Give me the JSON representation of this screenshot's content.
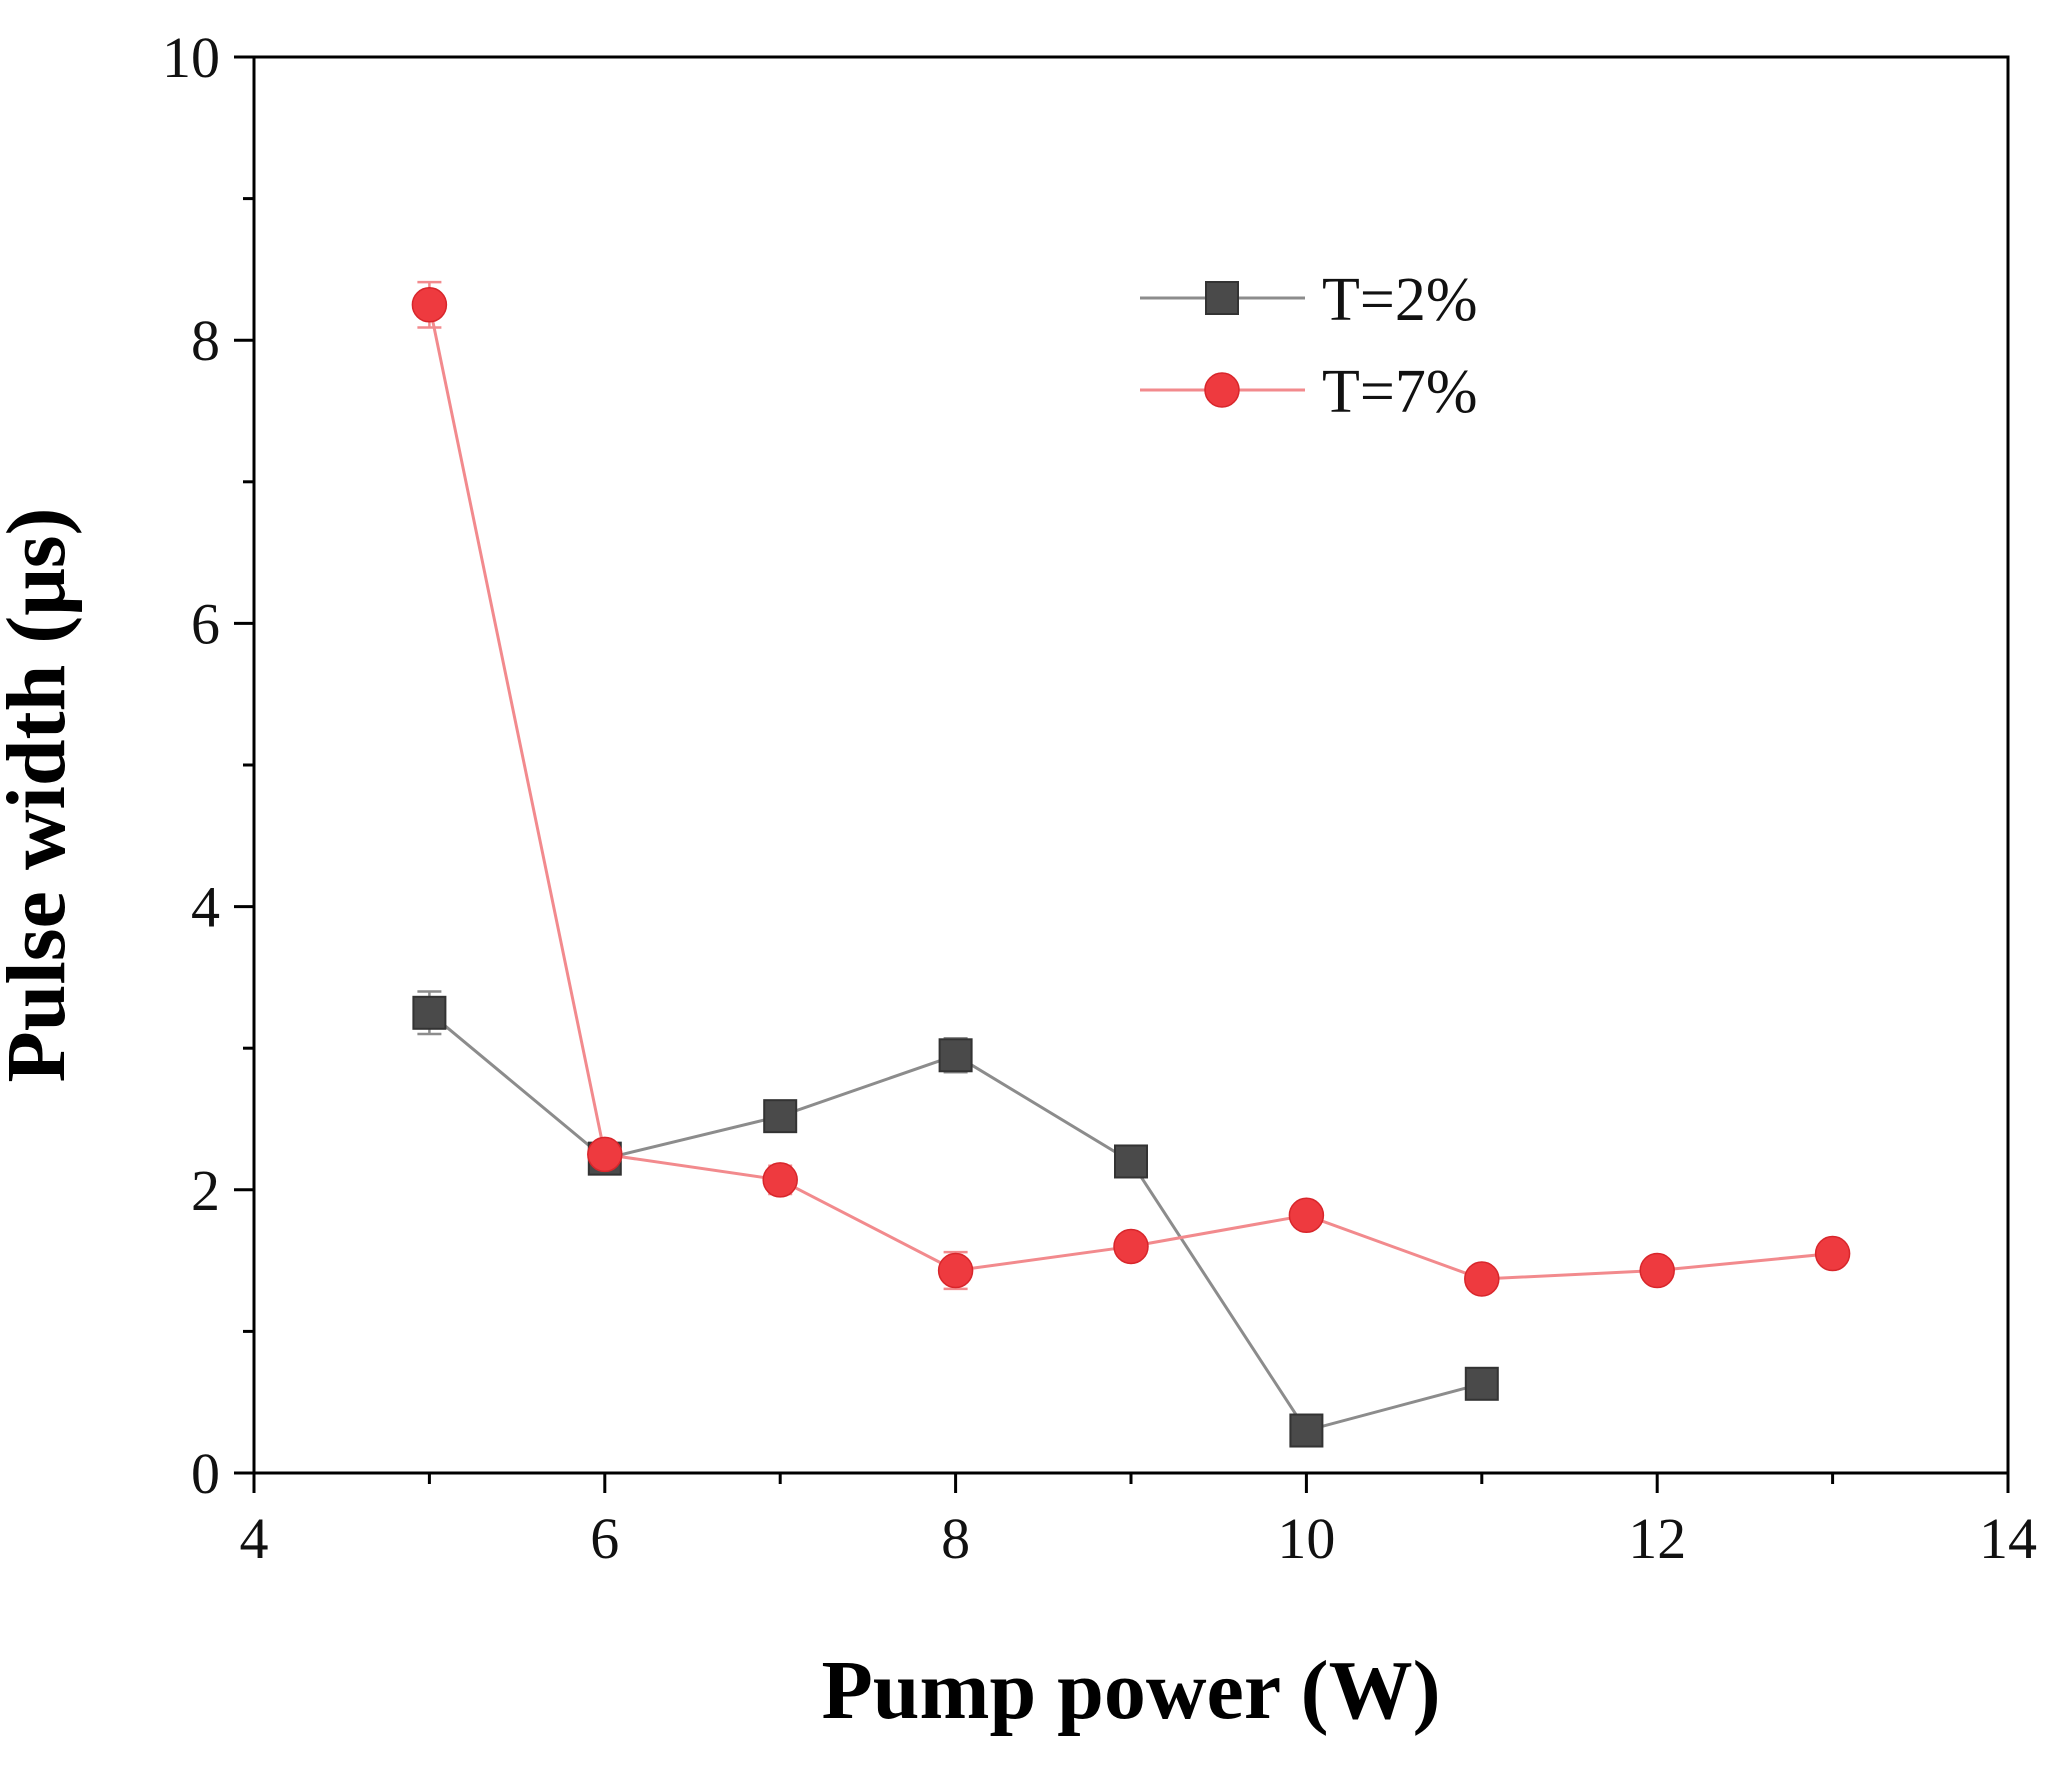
{
  "chart_data": {
    "type": "line",
    "title": "",
    "xlabel": "Pump power (W)",
    "ylabel": "Pulse width (μs)",
    "xlim": [
      4,
      14
    ],
    "ylim": [
      0,
      10
    ],
    "xticks": [
      4,
      6,
      8,
      10,
      12,
      14
    ],
    "yticks": [
      0,
      2,
      4,
      6,
      8,
      10
    ],
    "grid": false,
    "legend_position": "top-right",
    "series": [
      {
        "name": "T=2%",
        "marker": "square",
        "color": "#4a4a4a",
        "line_color": "#8c8c8c",
        "x": [
          5,
          6,
          7,
          8,
          9,
          10,
          11
        ],
        "y": [
          3.25,
          2.22,
          2.52,
          2.95,
          2.2,
          0.3,
          0.63
        ],
        "err": [
          0.15,
          0.05,
          0.1,
          0.12,
          0.05,
          0.03,
          0.05
        ]
      },
      {
        "name": "T=7%",
        "marker": "circle",
        "color": "#ee3a3f",
        "line_color": "#f28a8d",
        "x": [
          5,
          6,
          7,
          8,
          9,
          10,
          11,
          12,
          13
        ],
        "y": [
          8.25,
          2.25,
          2.07,
          1.43,
          1.6,
          1.82,
          1.37,
          1.43,
          1.55
        ],
        "err": [
          0.16,
          0.05,
          0.1,
          0.13,
          0.08,
          0.04,
          0.05,
          0.04,
          0.04
        ]
      }
    ]
  }
}
